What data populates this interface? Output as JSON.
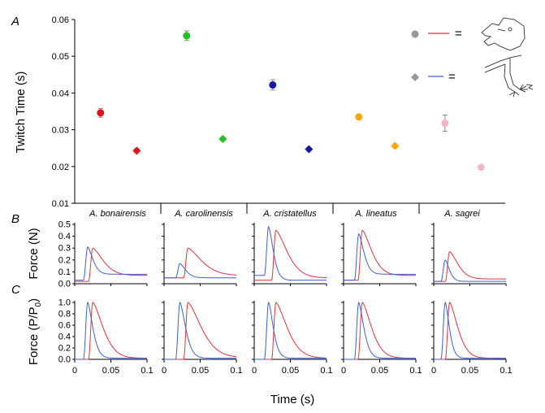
{
  "colors": {
    "axis": "#000000",
    "error_bar": "#888888",
    "jaw_trace": "#e8313a",
    "limb_trace": "#3a5fdc",
    "legend_marker": "#999999"
  },
  "species": [
    "A. bonairensis",
    "A. carolinensis",
    "A. cristatellus",
    "A. lineatus",
    "A. sagrei"
  ],
  "chart_data": [
    {
      "panel": "A",
      "type": "scatter",
      "ylabel": "Twitch Time (s)",
      "ylim": [
        0.01,
        0.06
      ],
      "yticks": [
        "0.01",
        "0.02",
        "0.03",
        "0.04",
        "0.05",
        "0.06"
      ],
      "categories": [
        "A. bonairensis",
        "A. carolinensis",
        "A. cristatellus",
        "A. lineatus",
        "A. sagrei"
      ],
      "series": [
        {
          "marker": "circle",
          "values": [
            0.0346,
            0.0556,
            0.0422,
            0.0335,
            0.0318
          ],
          "errors": [
            0.0012,
            0.0013,
            0.0014,
            0.0005,
            0.0022
          ]
        },
        {
          "marker": "diamond",
          "values": [
            0.0243,
            0.0275,
            0.0247,
            0.0256,
            0.0198
          ],
          "errors": [
            0.0006,
            0.0005,
            0.0005,
            0.0005,
            0.0006
          ]
        }
      ],
      "point_colors": [
        "#e0141e",
        "#1fc41f",
        "#1616a8",
        "#ffa500",
        "#f6b3c4"
      ],
      "legend": {
        "position": "top-right",
        "entries": [
          {
            "marker": "circle",
            "line": "red",
            "symbol": "=",
            "icon": "lizard-head-icon"
          },
          {
            "marker": "diamond",
            "line": "blue",
            "symbol": "=",
            "icon": "lizard-limb-icon"
          }
        ]
      }
    },
    {
      "panel": "B",
      "type": "line",
      "ylabel": "Force (N)",
      "ylim": [
        0,
        0.5
      ],
      "yticks": [
        "0.0",
        "0.1",
        "0.2",
        "0.3",
        "0.4",
        "0.5"
      ],
      "xlim": [
        0,
        0.1
      ],
      "curves": [
        {
          "red": {
            "peak_time": 0.025,
            "peak": 0.3,
            "baseline": 0.02,
            "tail": 0.07,
            "decay": 0.02
          },
          "blue": {
            "peak_time": 0.018,
            "peak": 0.31,
            "baseline": 0.03,
            "tail": 0.08,
            "decay": 0.01
          }
        },
        {
          "red": {
            "peak_time": 0.033,
            "peak": 0.3,
            "baseline": 0.05,
            "tail": 0.07,
            "decay": 0.026
          },
          "blue": {
            "peak_time": 0.022,
            "peak": 0.17,
            "baseline": 0.05,
            "tail": 0.05,
            "decay": 0.011
          }
        },
        {
          "red": {
            "peak_time": 0.03,
            "peak": 0.45,
            "baseline": 0.03,
            "tail": 0.05,
            "decay": 0.022
          },
          "blue": {
            "peak_time": 0.02,
            "peak": 0.48,
            "baseline": 0.07,
            "tail": 0.03,
            "decay": 0.009
          }
        },
        {
          "red": {
            "peak_time": 0.026,
            "peak": 0.45,
            "baseline": 0.03,
            "tail": 0.07,
            "decay": 0.018
          },
          "blue": {
            "peak_time": 0.021,
            "peak": 0.42,
            "baseline": 0.03,
            "tail": 0.08,
            "decay": 0.01
          }
        },
        {
          "red": {
            "peak_time": 0.022,
            "peak": 0.27,
            "baseline": 0.02,
            "tail": 0.04,
            "decay": 0.016
          },
          "blue": {
            "peak_time": 0.016,
            "peak": 0.2,
            "baseline": 0.02,
            "tail": 0.02,
            "decay": 0.008
          }
        }
      ]
    },
    {
      "panel": "C",
      "type": "line",
      "ylabel": "Force (P/P",
      "ylabel_sub": "0",
      "ylabel_end": ")",
      "ylim": [
        0,
        1.0
      ],
      "yticks": [
        "0.0",
        "0.2",
        "0.4",
        "0.6",
        "0.8",
        "1.0"
      ],
      "xlabel": "Time (s)",
      "xticks": [
        "0",
        "0.05",
        "0.1"
      ],
      "xlim": [
        0,
        0.1
      ],
      "curves": [
        {
          "red": {
            "peak_time": 0.025,
            "peak": 1.0,
            "baseline": 0.0,
            "tail": 0.02,
            "decay": 0.02
          },
          "blue": {
            "peak_time": 0.018,
            "peak": 1.0,
            "baseline": 0.0,
            "tail": 0.02,
            "decay": 0.01
          }
        },
        {
          "red": {
            "peak_time": 0.033,
            "peak": 1.0,
            "baseline": 0.0,
            "tail": 0.03,
            "decay": 0.026
          },
          "blue": {
            "peak_time": 0.022,
            "peak": 1.0,
            "baseline": 0.0,
            "tail": 0.02,
            "decay": 0.011
          }
        },
        {
          "red": {
            "peak_time": 0.03,
            "peak": 1.0,
            "baseline": 0.0,
            "tail": 0.02,
            "decay": 0.022
          },
          "blue": {
            "peak_time": 0.02,
            "peak": 1.0,
            "baseline": 0.0,
            "tail": 0.02,
            "decay": 0.009
          }
        },
        {
          "red": {
            "peak_time": 0.026,
            "peak": 1.0,
            "baseline": 0.0,
            "tail": 0.02,
            "decay": 0.018
          },
          "blue": {
            "peak_time": 0.021,
            "peak": 1.0,
            "baseline": 0.0,
            "tail": 0.02,
            "decay": 0.01
          }
        },
        {
          "red": {
            "peak_time": 0.022,
            "peak": 1.0,
            "baseline": 0.0,
            "tail": 0.02,
            "decay": 0.016
          },
          "blue": {
            "peak_time": 0.016,
            "peak": 1.0,
            "baseline": 0.0,
            "tail": 0.02,
            "decay": 0.008
          }
        }
      ]
    }
  ]
}
